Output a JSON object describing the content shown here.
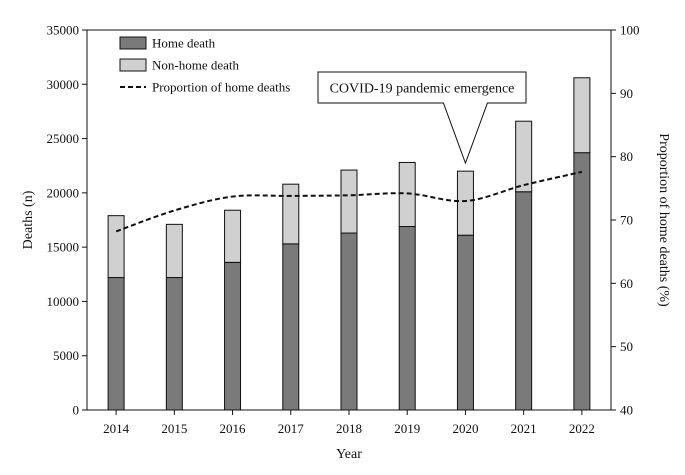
{
  "chart_data": {
    "type": "bar+line",
    "title": "",
    "xlabel": "Year",
    "ylabel": "Deaths (n)",
    "y2label": "Proportion of home deaths (%)",
    "categories": [
      "2014",
      "2015",
      "2016",
      "2017",
      "2018",
      "2019",
      "2020",
      "2021",
      "2022"
    ],
    "ylim": [
      0,
      35000
    ],
    "yticks": [
      0,
      5000,
      10000,
      15000,
      20000,
      25000,
      30000,
      35000
    ],
    "y2lim": [
      40,
      100
    ],
    "y2ticks": [
      40,
      50,
      60,
      70,
      80,
      90,
      100
    ],
    "stacked": true,
    "series": [
      {
        "name": "Home death",
        "kind": "bar",
        "color": "#7a7a7a",
        "values": [
          12200,
          12200,
          13600,
          15300,
          16300,
          16900,
          16100,
          20100,
          23700
        ]
      },
      {
        "name": "Non-home death",
        "kind": "bar",
        "color": "#d0d0d0",
        "values": [
          5700,
          4900,
          4800,
          5500,
          5800,
          5900,
          5900,
          6500,
          6900
        ]
      },
      {
        "name": "Proportion of home deaths",
        "kind": "line",
        "axis": "right",
        "style": "dashed",
        "color": "#111111",
        "values": [
          68.2,
          71.5,
          73.7,
          73.8,
          73.9,
          74.2,
          73.0,
          75.5,
          77.6
        ]
      }
    ],
    "legend_position": "top-left",
    "annotation": {
      "text": "COVID-19 pandemic emergence",
      "category": "2020"
    }
  }
}
